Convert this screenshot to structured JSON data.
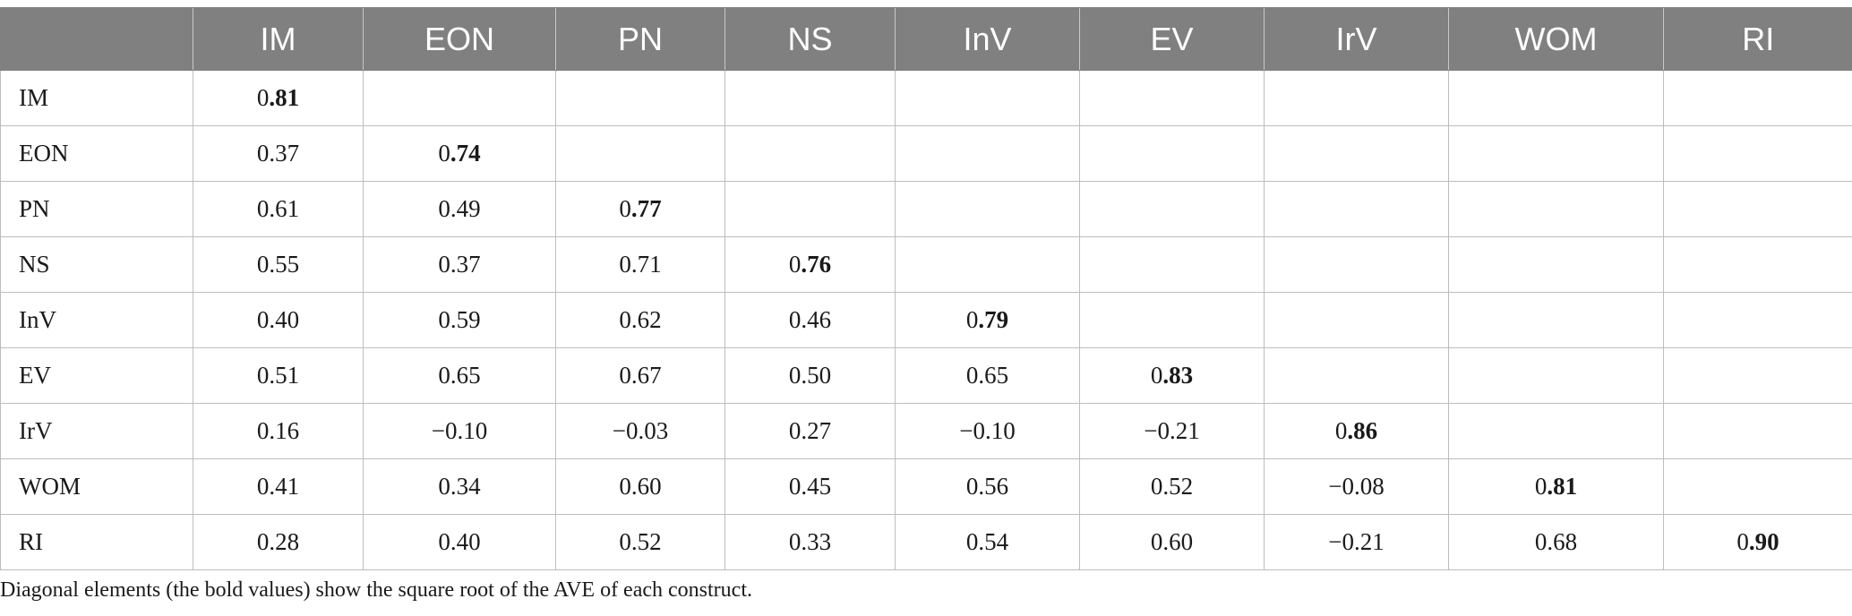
{
  "columns": [
    "",
    "IM",
    "EON",
    "PN",
    "NS",
    "InV",
    "EV",
    "IrV",
    "WOM",
    "RI"
  ],
  "rows": [
    {
      "label": "IM",
      "cells": [
        "0.81",
        "",
        "",
        "",
        "",
        "",
        "",
        "",
        ""
      ]
    },
    {
      "label": "EON",
      "cells": [
        "0.37",
        "0.74",
        "",
        "",
        "",
        "",
        "",
        "",
        ""
      ]
    },
    {
      "label": "PN",
      "cells": [
        "0.61",
        "0.49",
        "0.77",
        "",
        "",
        "",
        "",
        "",
        ""
      ]
    },
    {
      "label": "NS",
      "cells": [
        "0.55",
        "0.37",
        "0.71",
        "0.76",
        "",
        "",
        "",
        "",
        ""
      ]
    },
    {
      "label": "InV",
      "cells": [
        "0.40",
        "0.59",
        "0.62",
        "0.46",
        "0.79",
        "",
        "",
        "",
        ""
      ]
    },
    {
      "label": "EV",
      "cells": [
        "0.51",
        "0.65",
        "0.67",
        "0.50",
        "0.65",
        "0.83",
        "",
        "",
        ""
      ]
    },
    {
      "label": "IrV",
      "cells": [
        "0.16",
        "−0.10",
        "−0.03",
        "0.27",
        "−0.10",
        "−0.21",
        "0.86",
        "",
        ""
      ]
    },
    {
      "label": "WOM",
      "cells": [
        "0.41",
        "0.34",
        "0.60",
        "0.45",
        "0.56",
        "0.52",
        "−0.08",
        "0.81",
        ""
      ]
    },
    {
      "label": "RI",
      "cells": [
        "0.28",
        "0.40",
        "0.52",
        "0.33",
        "0.54",
        "0.60",
        "−0.21",
        "0.68",
        "0.90"
      ]
    }
  ],
  "footnote": "Diagonal elements (the bold values) show the square root of the AVE of each construct.",
  "colors": {
    "header_bg": "#808080",
    "header_text": "#ffffff",
    "grid": "#bdbdbd"
  }
}
